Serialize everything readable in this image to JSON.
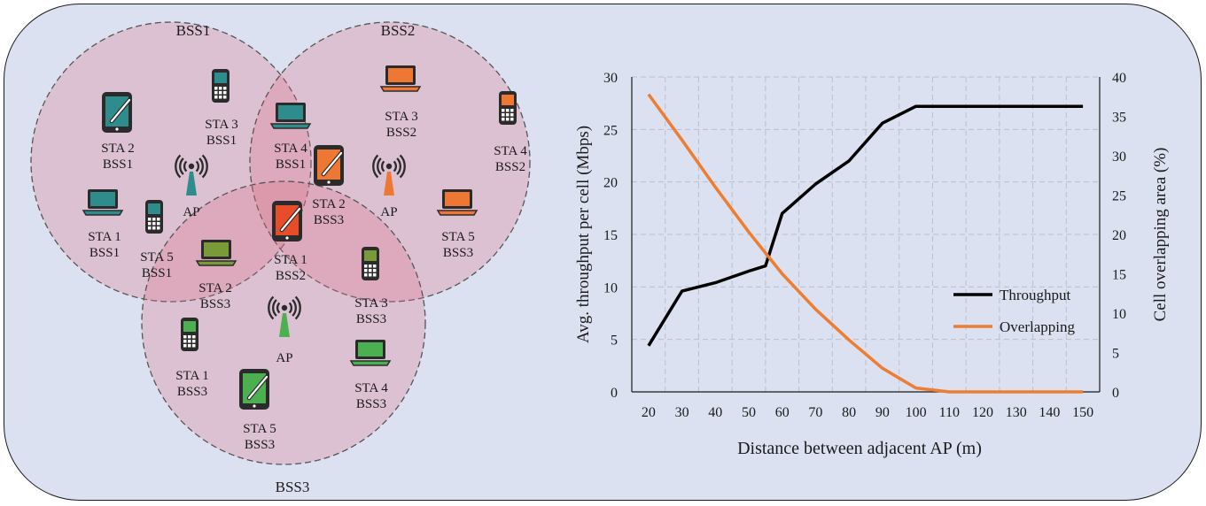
{
  "diagram": {
    "bss_titles": [
      "BSS1",
      "BSS2",
      "BSS3"
    ],
    "ap_label": "AP",
    "stations": [
      {
        "l1": "STA 2",
        "l2": "BSS1",
        "device": "tablet",
        "color": "#2e8c8c"
      },
      {
        "l1": "STA 3",
        "l2": "BSS1",
        "device": "phone",
        "color": "#2e8c8c"
      },
      {
        "l1": "STA 1",
        "l2": "BSS1",
        "device": "laptop",
        "color": "#2e8c8c"
      },
      {
        "l1": "STA 5",
        "l2": "BSS1",
        "device": "phone",
        "color": "#2e8c8c"
      },
      {
        "l1": "STA 4",
        "l2": "BSS1",
        "device": "laptop",
        "color": "#2e8c8c"
      },
      {
        "l1": "STA 3",
        "l2": "BSS2",
        "device": "laptop",
        "color": "#ee7733"
      },
      {
        "l1": "STA 4",
        "l2": "BSS2",
        "device": "phone",
        "color": "#ee7733"
      },
      {
        "l1": "STA 2",
        "l2": "BSS3",
        "device": "tablet",
        "color": "#ee7733"
      },
      {
        "l1": "STA 5",
        "l2": "BSS3",
        "device": "laptop",
        "color": "#ee7733"
      },
      {
        "l1": "STA 1",
        "l2": "BSS2",
        "device": "tablet",
        "color": "#e84d2a"
      },
      {
        "l1": "STA 2",
        "l2": "BSS3",
        "device": "laptop",
        "color": "#7a9a3a"
      },
      {
        "l1": "STA 3",
        "l2": "BSS3",
        "device": "phone",
        "color": "#7a9a3a"
      },
      {
        "l1": "STA 1",
        "l2": "BSS3",
        "device": "phone",
        "color": "#4caf50"
      },
      {
        "l1": "STA 4",
        "l2": "BSS3",
        "device": "laptop",
        "color": "#4caf50"
      },
      {
        "l1": "STA 5",
        "l2": "BSS3",
        "device": "tablet",
        "color": "#4caf50"
      }
    ],
    "ap_colors": [
      "#2e8c8c",
      "#ee7733",
      "#4caf50"
    ]
  },
  "chart_data": {
    "type": "line",
    "x": [
      20,
      30,
      40,
      50,
      55,
      60,
      70,
      80,
      90,
      100,
      110,
      120,
      130,
      140,
      150
    ],
    "xticks": [
      20,
      30,
      40,
      50,
      60,
      70,
      80,
      90,
      100,
      110,
      120,
      130,
      140,
      150
    ],
    "xlim": [
      15,
      155
    ],
    "xlabel": "Distance  between adjacent AP (m)",
    "ylabel_left": "Avg.  throughput   per cell  (Mbps)",
    "ylabel_right": "Cell overlapping  area  (%)",
    "ylim_left": [
      0,
      30
    ],
    "ylim_right": [
      0,
      40
    ],
    "yticks_left": [
      0,
      5,
      10,
      15,
      20,
      25,
      30
    ],
    "yticks_right": [
      0,
      5,
      10,
      15,
      20,
      25,
      30,
      35,
      40
    ],
    "grid": true,
    "legend_position": "bottom-right",
    "series": [
      {
        "name": "Throughput",
        "axis": "left",
        "color": "#000000",
        "x": [
          20,
          30,
          40,
          50,
          55,
          60,
          70,
          80,
          90,
          100,
          110,
          120,
          130,
          140,
          150
        ],
        "values": [
          4.4,
          9.6,
          10.4,
          11.5,
          12.0,
          17.0,
          19.8,
          22.0,
          25.6,
          27.2,
          27.2,
          27.2,
          27.2,
          27.2,
          27.2
        ]
      },
      {
        "name": "Overlapping",
        "axis": "right",
        "color": "#ee7d31",
        "x": [
          20,
          30,
          40,
          50,
          60,
          70,
          80,
          90,
          100,
          110,
          120,
          130,
          140,
          150
        ],
        "values": [
          37.8,
          32.0,
          26.0,
          20.3,
          15.0,
          10.5,
          6.6,
          3.0,
          0.5,
          0.0,
          0.0,
          0.0,
          0.0,
          0.0
        ]
      }
    ]
  }
}
